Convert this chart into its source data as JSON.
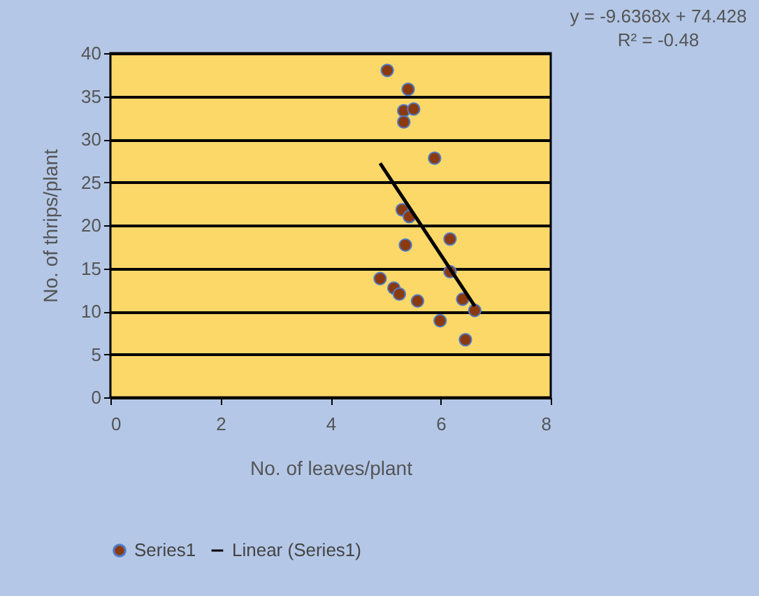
{
  "chart_data": {
    "type": "scatter",
    "xlabel": "No. of leaves/plant",
    "ylabel": "No. of thrips/plant",
    "xlim": [
      0,
      8
    ],
    "xticks": [
      0,
      2,
      4,
      6,
      8
    ],
    "ylim": [
      0,
      40
    ],
    "yticks": [
      0,
      5,
      10,
      15,
      20,
      25,
      30,
      35,
      40
    ],
    "grid": "y",
    "legend": "bottom",
    "annotations": [
      "y = -9.6368x + 74.428",
      "R² = -0.48"
    ],
    "series": [
      {
        "name": "Series1",
        "marker": "circle",
        "color": "#8b3a10",
        "x": [
          5.03,
          5.41,
          5.33,
          5.51,
          5.33,
          5.89,
          5.3,
          5.43,
          5.36,
          6.17,
          6.17,
          4.9,
          5.15,
          5.25,
          5.58,
          6.4,
          6.62,
          5.99,
          6.45
        ],
        "values": [
          38,
          35.8,
          33.3,
          33.5,
          32,
          27.8,
          21.8,
          21,
          17.7,
          18.4,
          14.6,
          13.8,
          12.7,
          12,
          11.2,
          11.4,
          10.1,
          8.9,
          6.7
        ]
      },
      {
        "name": "Linear (Series1)",
        "type": "line",
        "marker": "none",
        "color": "#000000",
        "x": [
          4.9,
          6.62
        ],
        "values": [
          27.2,
          10.6
        ]
      }
    ]
  }
}
